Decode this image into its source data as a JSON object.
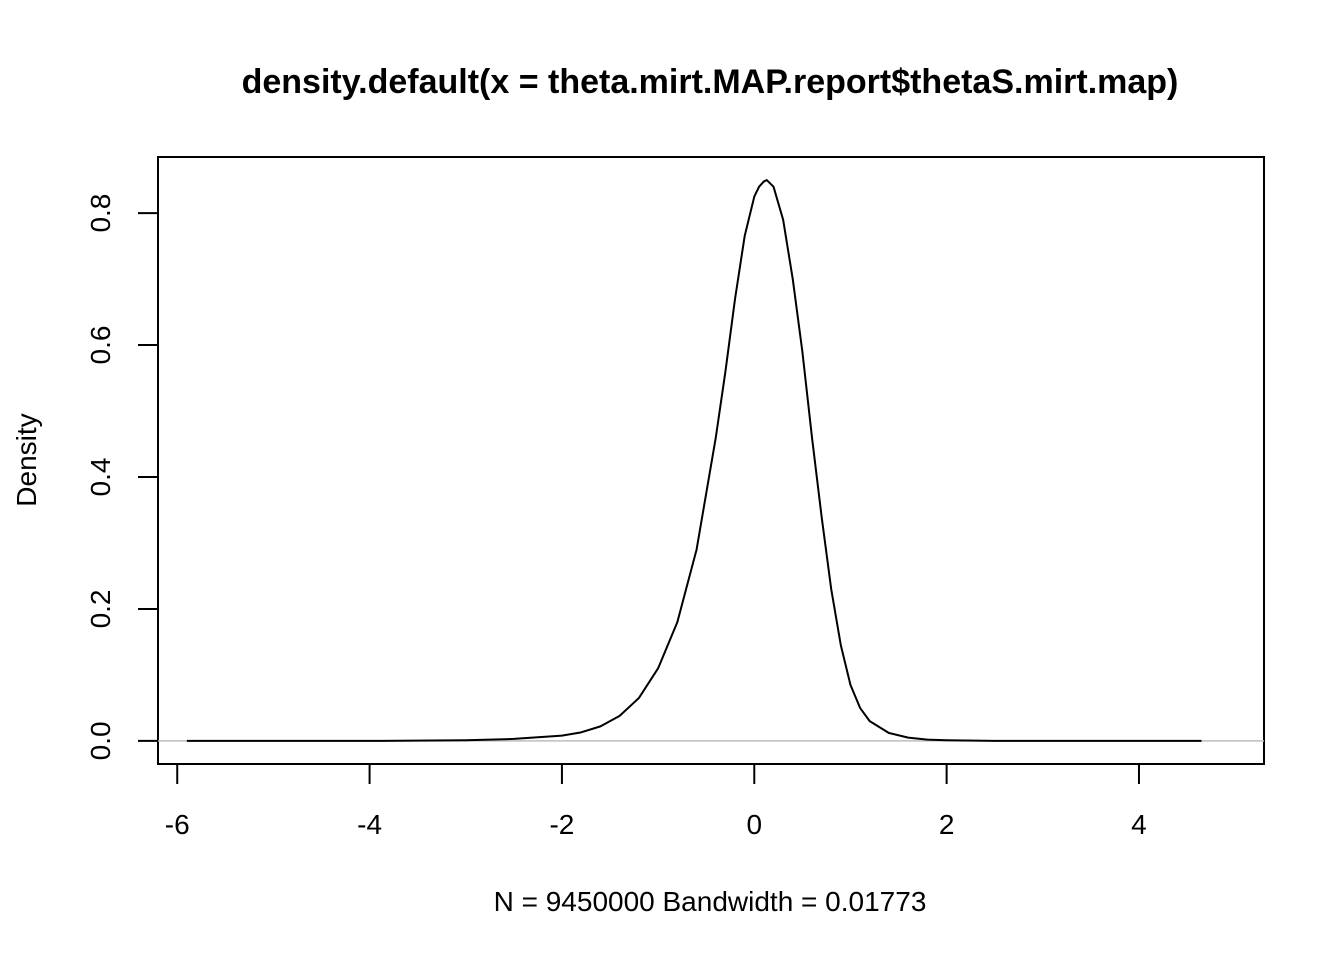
{
  "chart_data": {
    "type": "line",
    "title": "density.default(x = theta.mirt.MAP.report$thetaS.mirt.map)",
    "xlabel": "N = 9450000   Bandwidth = 0.01773",
    "ylabel": "Density",
    "xlim": [
      -6.2,
      5.3
    ],
    "ylim": [
      -0.035,
      0.885
    ],
    "x_ticks": [
      -6,
      -4,
      -2,
      0,
      2,
      4
    ],
    "y_ticks": [
      0.0,
      0.2,
      0.4,
      0.6,
      0.8
    ],
    "x_tick_labels": [
      "-6",
      "-4",
      "-2",
      "0",
      "2",
      "4"
    ],
    "y_tick_labels": [
      "0.0",
      "0.2",
      "0.4",
      "0.6",
      "0.8"
    ],
    "zero_line": true,
    "grid": false,
    "series": [
      {
        "color": "#000000",
        "x": [
          -5.9,
          -5.0,
          -4.0,
          -3.0,
          -2.5,
          -2.0,
          -1.8,
          -1.6,
          -1.4,
          -1.2,
          -1.0,
          -0.8,
          -0.6,
          -0.4,
          -0.3,
          -0.2,
          -0.1,
          0.0,
          0.05,
          0.1,
          0.13,
          0.2,
          0.3,
          0.4,
          0.5,
          0.6,
          0.7,
          0.8,
          0.9,
          1.0,
          1.1,
          1.2,
          1.4,
          1.6,
          1.8,
          2.0,
          2.5,
          3.0,
          4.0,
          4.65
        ],
        "values": [
          0.0,
          0.0,
          0.0,
          0.001,
          0.003,
          0.008,
          0.013,
          0.022,
          0.038,
          0.065,
          0.11,
          0.18,
          0.29,
          0.46,
          0.56,
          0.67,
          0.765,
          0.825,
          0.84,
          0.848,
          0.85,
          0.84,
          0.79,
          0.7,
          0.59,
          0.46,
          0.34,
          0.23,
          0.145,
          0.085,
          0.05,
          0.03,
          0.012,
          0.005,
          0.002,
          0.001,
          0.0,
          0.0,
          0.0,
          0.0
        ]
      }
    ]
  }
}
